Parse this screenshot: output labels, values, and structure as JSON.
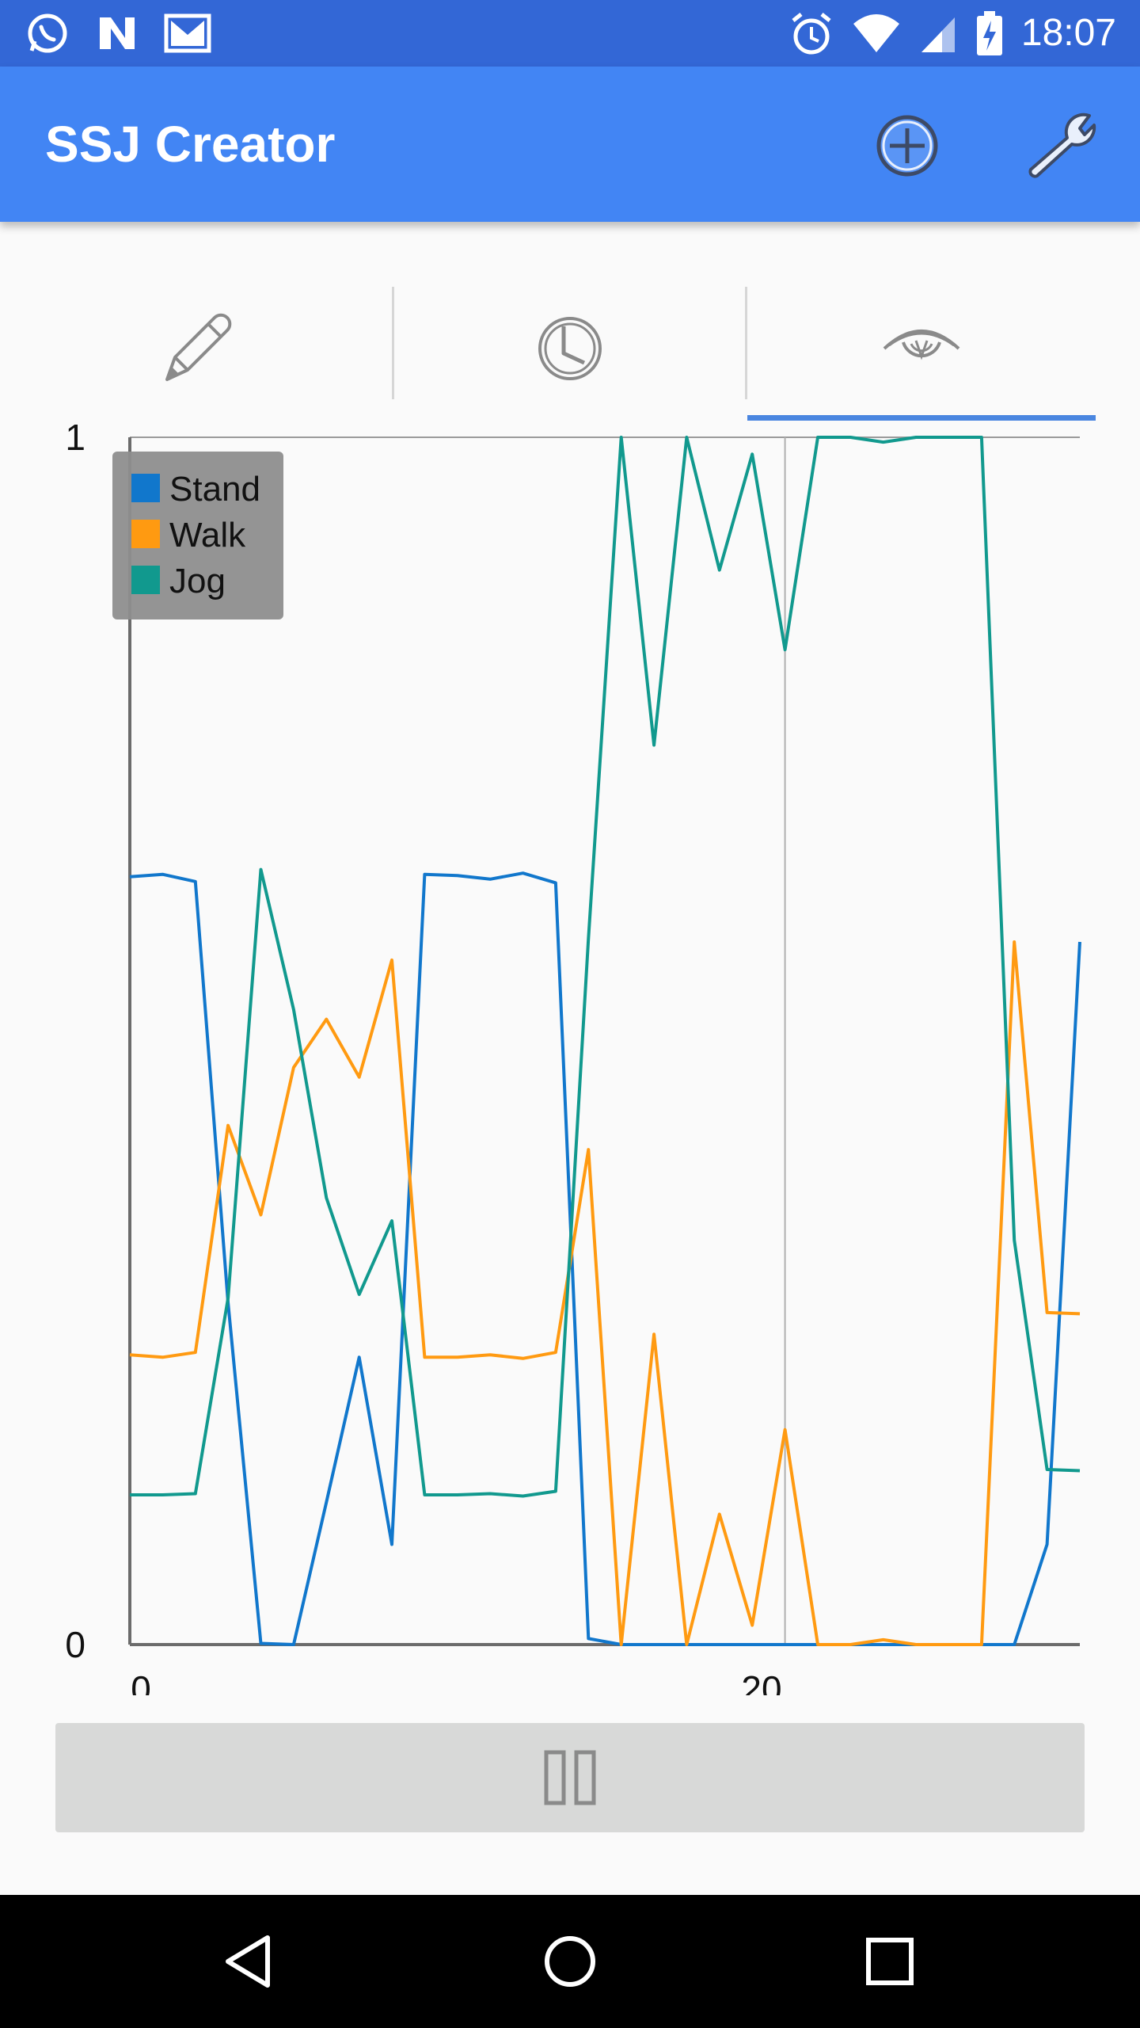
{
  "status_bar": {
    "time": "18:07",
    "left_icons": [
      "whatsapp-icon",
      "n-notification-icon",
      "gmail-icon"
    ],
    "right_icons": [
      "alarm-icon",
      "wifi-icon",
      "signal-icon",
      "battery-charging-icon"
    ]
  },
  "app_bar": {
    "title": "SSJ Creator",
    "actions": [
      "add-circle-icon",
      "wrench-icon"
    ]
  },
  "tabs": [
    {
      "icon": "pencil-icon",
      "selected": false
    },
    {
      "icon": "clock-icon",
      "selected": false
    },
    {
      "icon": "eye-icon",
      "selected": true
    }
  ],
  "colors": {
    "status_bar": "#3367d6",
    "app_bar": "#4285f4",
    "tab_indicator": "#4a86e0",
    "stand": "#1177cc",
    "walk": "#ff9a11",
    "jog": "#11998e"
  },
  "chart_data": {
    "type": "line",
    "xlim": [
      0,
      29
    ],
    "ylim": [
      0,
      1
    ],
    "x_ticks": [
      "0",
      "20"
    ],
    "y_ticks": [
      "0",
      "1"
    ],
    "legend_position": "top-left",
    "grid": "vertical line at x=20",
    "x": [
      0,
      1,
      2,
      3,
      4,
      5,
      6,
      7,
      8,
      9,
      10,
      11,
      12,
      13,
      14,
      15,
      16,
      17,
      18,
      19,
      20,
      21,
      22,
      23,
      24,
      25,
      26,
      27,
      28,
      29
    ],
    "series": [
      {
        "name": "Stand",
        "color": "#1177cc",
        "values": [
          0.636,
          0.638,
          0.632,
          0.283,
          0.001,
          0.0,
          0.118,
          0.238,
          0.083,
          0.638,
          0.637,
          0.634,
          0.639,
          0.631,
          0.005,
          0.0,
          0.0,
          0.0,
          0.0,
          0.0,
          0.0,
          0.0,
          0.0,
          0.0,
          0.0,
          0.0,
          0.0,
          0.0,
          0.083,
          0.582
        ]
      },
      {
        "name": "Walk",
        "color": "#ff9a11",
        "values": [
          0.24,
          0.238,
          0.242,
          0.43,
          0.356,
          0.478,
          0.518,
          0.47,
          0.567,
          0.238,
          0.238,
          0.24,
          0.237,
          0.242,
          0.41,
          0.0,
          0.257,
          0.0,
          0.108,
          0.016,
          0.178,
          0.0,
          0.0,
          0.004,
          0.0,
          0.0,
          0.0,
          0.582,
          0.275,
          0.274
        ]
      },
      {
        "name": "Jog",
        "color": "#11998e",
        "values": [
          0.124,
          0.124,
          0.125,
          0.287,
          0.642,
          0.526,
          0.37,
          0.29,
          0.351,
          0.124,
          0.124,
          0.125,
          0.123,
          0.127,
          0.585,
          1.0,
          0.745,
          1.0,
          0.89,
          0.986,
          0.824,
          1.0,
          1.0,
          0.996,
          1.0,
          1.0,
          1.0,
          0.335,
          0.145,
          0.144
        ]
      }
    ]
  },
  "controls": {
    "pause_icon": "pause-icon"
  },
  "nav_bar": [
    "back-icon",
    "home-icon",
    "recents-icon"
  ]
}
